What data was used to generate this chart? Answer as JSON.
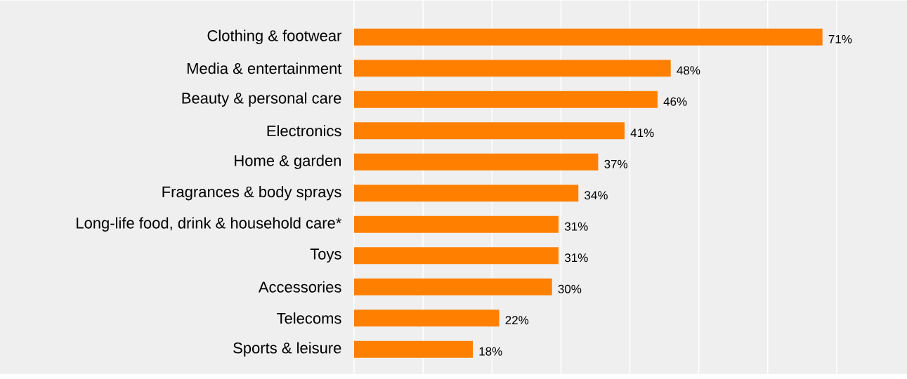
{
  "chart_data": {
    "type": "bar",
    "orientation": "horizontal",
    "categories": [
      "Clothing & footwear",
      "Media & entertainment",
      "Beauty & personal care",
      "Electronics",
      "Home & garden",
      "Fragrances & body sprays",
      "Long-life food, drink & household care*",
      "Toys",
      "Accessories",
      "Telecoms",
      "Sports & leisure"
    ],
    "values": [
      71,
      48,
      46,
      41,
      37,
      34,
      31,
      31,
      30,
      22,
      18
    ],
    "value_labels": [
      "71%",
      "48%",
      "46%",
      "41%",
      "37%",
      "34%",
      "31%",
      "31%",
      "30%",
      "22%",
      "18%"
    ],
    "color": "#ff7f00",
    "xlim": [
      0,
      83.8
    ],
    "xticks": [
      {
        "value": 0,
        "label": null
      },
      {
        "value": 10.45,
        "label": null
      },
      {
        "value": 20.9,
        "label": null
      },
      {
        "value": 31.35,
        "label": null
      },
      {
        "value": 41.8,
        "label": null
      },
      {
        "value": 52.25,
        "label": null
      },
      {
        "value": 62.7,
        "label": null
      },
      {
        "value": 73.15,
        "label": null
      }
    ],
    "grid": "x",
    "tick_labels": "y"
  }
}
